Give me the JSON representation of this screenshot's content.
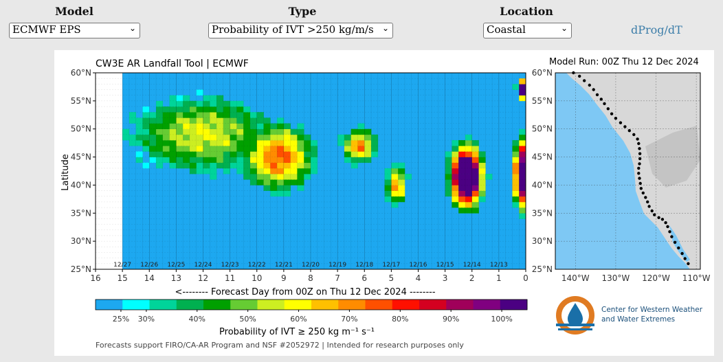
{
  "controls": {
    "model": {
      "label": "Model",
      "value": "ECMWF EPS"
    },
    "type": {
      "label": "Type",
      "value": "Probability of IVT >250 kg/m/s"
    },
    "location": {
      "label": "Location",
      "value": "Coastal"
    },
    "link": "dProg/dT"
  },
  "chart_data": {
    "type": "heatmap",
    "title": "CW3E AR Landfall Tool | ECMWF",
    "model_run": "Model Run: 00Z Thu 12 Dec 2024",
    "xlabel": "<-------- Forecast Day from 00Z on Thu 12 Dec 2024 --------",
    "ylabel": "Latitude",
    "x_ticks": [
      "16",
      "15",
      "14",
      "13",
      "12",
      "11",
      "10",
      "9",
      "8",
      "7",
      "6",
      "5",
      "4",
      "3",
      "2",
      "1",
      "0"
    ],
    "xlim": [
      16,
      0
    ],
    "y_ticks": [
      "25°N",
      "30°N",
      "35°N",
      "40°N",
      "45°N",
      "50°N",
      "55°N",
      "60°N"
    ],
    "ylim": [
      25,
      60
    ],
    "date_labels": [
      "12/27",
      "12/26",
      "12/25",
      "12/24",
      "12/23",
      "12/22",
      "12/21",
      "12/20",
      "12/19",
      "12/18",
      "12/17",
      "12/16",
      "12/15",
      "12/14",
      "12/13"
    ],
    "date_label_days": [
      15,
      14,
      13,
      12,
      11,
      10,
      9,
      8,
      7,
      6,
      5,
      4,
      3,
      2,
      1
    ],
    "grid": true,
    "colorbar": {
      "label": "Probability of IVT ≥ 250 kg m⁻¹ s⁻¹",
      "tick_labels": [
        "25%",
        "30%",
        "40%",
        "50%",
        "60%",
        "70%",
        "80%",
        "90%",
        "100%"
      ],
      "tick_values": [
        25,
        30,
        40,
        50,
        60,
        70,
        80,
        90,
        100
      ],
      "colors": [
        "#1da8f0",
        "#00ffff",
        "#00d49a",
        "#00b050",
        "#00a000",
        "#66cc33",
        "#ccee22",
        "#ffff00",
        "#ffc000",
        "#ff8c00",
        "#ff5000",
        "#ff1000",
        "#d40020",
        "#a0005a",
        "#800080",
        "#4b0082"
      ]
    },
    "features": [
      {
        "name": "broad moderate-probability region",
        "days": [
          15,
          8.5
        ],
        "lat": [
          39,
          58
        ],
        "level": 45
      },
      {
        "name": "high-probability core",
        "days": [
          10.5,
          8
        ],
        "lat": [
          37,
          52
        ],
        "level": 65
      },
      {
        "name": "second wave",
        "days": [
          7,
          5
        ],
        "lat": [
          35,
          51
        ],
        "level": 60
      },
      {
        "name": "near-certain landfall",
        "days": [
          3,
          1.5
        ],
        "lat": [
          35,
          48
        ],
        "level": 100
      },
      {
        "name": "day 0-1 northern signal",
        "days": [
          0.5,
          0
        ],
        "lat": [
          35,
          59
        ],
        "level": 95
      }
    ],
    "map": {
      "lon_ticks": [
        "140°W",
        "130°W",
        "120°W",
        "110°W"
      ],
      "lat_ticks": [
        "25°N",
        "30°N",
        "35°N",
        "40°N",
        "45°N",
        "50°N",
        "55°N",
        "60°N"
      ]
    }
  },
  "footer": {
    "note": "Forecasts support FIRO/CA-AR Program and NSF #2052972 | Intended for research purposes only",
    "logo_line1": "Center for Western Weather",
    "logo_line2": "and Water Extremes"
  },
  "colors": {
    "background": "#1ea8f0",
    "accent": "#3a7ca8",
    "page": "#e8e8e8"
  }
}
